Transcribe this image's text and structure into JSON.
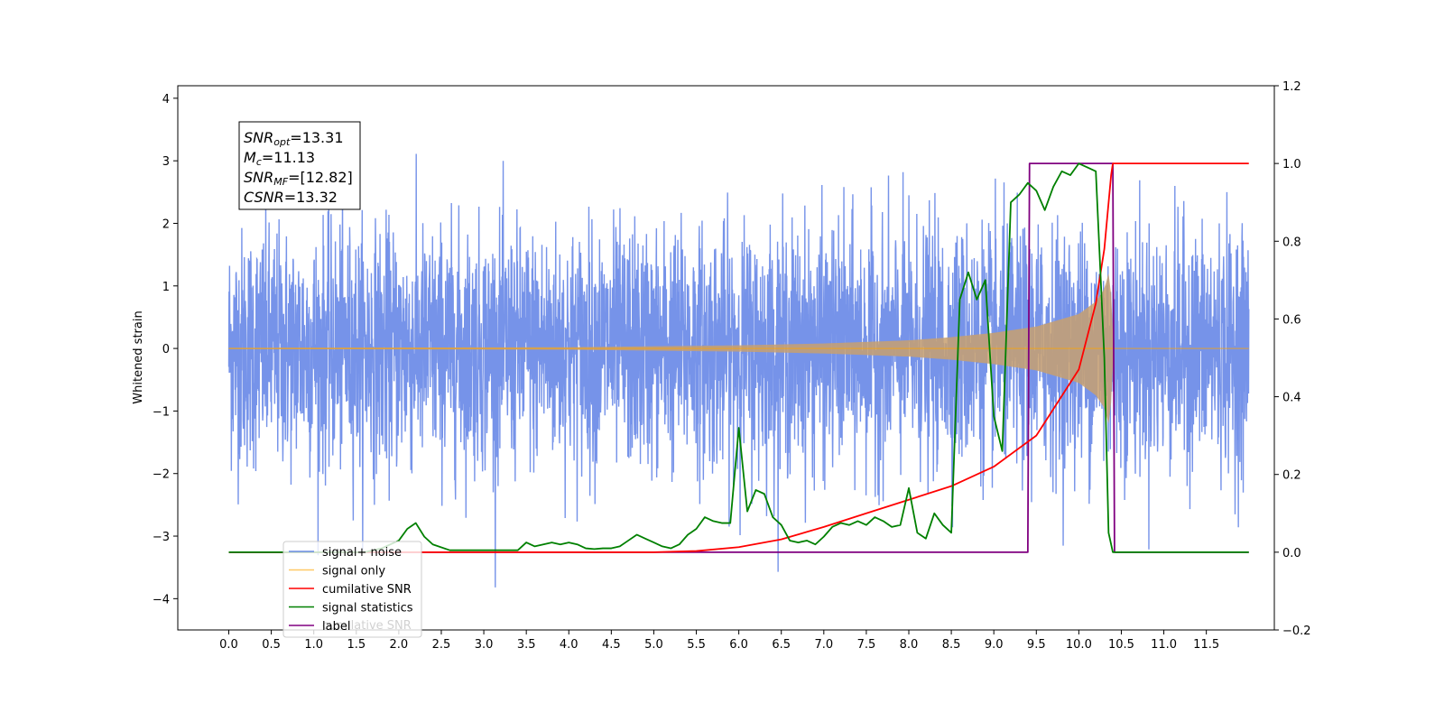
{
  "chart_data": {
    "type": "line",
    "title": "",
    "xlabel": "",
    "ylabel": "Whitened strain",
    "ylabel_right": "",
    "xlim": [
      -0.6,
      12.3
    ],
    "ylim": [
      -4.5,
      4.2
    ],
    "ylim_right": [
      -0.2,
      1.2
    ],
    "x_ticks": [
      "0.0",
      "0.5",
      "1.0",
      "1.5",
      "2.0",
      "2.5",
      "3.0",
      "3.5",
      "4.0",
      "4.5",
      "5.0",
      "5.5",
      "6.0",
      "6.5",
      "7.0",
      "7.5",
      "8.0",
      "8.5",
      "9.0",
      "9.5",
      "10.0",
      "10.5",
      "11.0",
      "11.5"
    ],
    "y_ticks_left": [
      "4",
      "3",
      "2",
      "1",
      "0",
      "−1",
      "−2",
      "−3",
      "−4"
    ],
    "y_ticks_right": [
      "1.2",
      "1.0",
      "0.8",
      "0.6",
      "0.4",
      "0.2",
      "0.0",
      "−0.2"
    ],
    "grid": false,
    "legend_placement": "lower-left",
    "annotation": {
      "lines": [
        {
          "sym": "SNR",
          "sub": "opt",
          "rest": "=13.31"
        },
        {
          "sym": "M",
          "sub": "c",
          "rest": "=11.13"
        },
        {
          "sym": "SNR",
          "sub": "MF",
          "rest": "=[12.82]"
        },
        {
          "sym": "CSNR",
          "sub": "",
          "rest": "=13.32"
        }
      ]
    },
    "series": [
      {
        "name": "signal+ noise",
        "color": "#4169e1",
        "axis": "left",
        "noise_sigma": 0.95,
        "x_range": [
          0.0,
          12.0
        ]
      },
      {
        "name": "signal only",
        "color": "#ffa500",
        "axis": "left",
        "envelope": [
          [
            0.0,
            0.01
          ],
          [
            4.0,
            0.02
          ],
          [
            6.0,
            0.05
          ],
          [
            7.0,
            0.08
          ],
          [
            8.0,
            0.13
          ],
          [
            8.5,
            0.18
          ],
          [
            9.0,
            0.25
          ],
          [
            9.5,
            0.35
          ],
          [
            10.0,
            0.55
          ],
          [
            10.2,
            0.75
          ],
          [
            10.3,
            0.95
          ],
          [
            10.37,
            1.3
          ],
          [
            10.4,
            0.0
          ],
          [
            12.0,
            0.0
          ]
        ]
      },
      {
        "name": "cumilative SNR",
        "color": "#ff0000",
        "axis": "right",
        "x": [
          0.0,
          5.0,
          5.5,
          6.0,
          6.5,
          7.0,
          7.5,
          8.0,
          8.5,
          9.0,
          9.5,
          10.0,
          10.2,
          10.3,
          10.38,
          10.4,
          12.0
        ],
        "y": [
          0.0,
          0.0,
          0.003,
          0.013,
          0.033,
          0.065,
          0.1,
          0.135,
          0.17,
          0.22,
          0.3,
          0.47,
          0.64,
          0.78,
          0.97,
          1.0,
          1.0
        ]
      },
      {
        "name": "signal statistics",
        "color": "#008000",
        "axis": "right",
        "x": [
          0.0,
          1.6,
          1.8,
          2.0,
          2.1,
          2.2,
          2.3,
          2.4,
          2.6,
          2.8,
          3.0,
          3.2,
          3.4,
          3.5,
          3.6,
          3.7,
          3.8,
          3.9,
          4.0,
          4.1,
          4.2,
          4.3,
          4.4,
          4.5,
          4.6,
          4.7,
          4.8,
          4.9,
          5.0,
          5.1,
          5.2,
          5.3,
          5.4,
          5.5,
          5.6,
          5.7,
          5.8,
          5.9,
          6.0,
          6.1,
          6.2,
          6.3,
          6.4,
          6.5,
          6.6,
          6.7,
          6.8,
          6.9,
          7.0,
          7.1,
          7.2,
          7.3,
          7.4,
          7.5,
          7.6,
          7.7,
          7.8,
          7.9,
          8.0,
          8.1,
          8.2,
          8.3,
          8.4,
          8.5,
          8.6,
          8.7,
          8.8,
          8.9,
          9.0,
          9.1,
          9.2,
          9.3,
          9.4,
          9.5,
          9.6,
          9.7,
          9.8,
          9.9,
          10.0,
          10.1,
          10.2,
          10.3,
          10.35,
          10.4,
          10.5,
          11.0,
          12.0
        ],
        "y": [
          0.0,
          0.0,
          0.01,
          0.03,
          0.06,
          0.075,
          0.04,
          0.02,
          0.005,
          0.005,
          0.005,
          0.005,
          0.005,
          0.025,
          0.015,
          0.02,
          0.025,
          0.02,
          0.025,
          0.02,
          0.01,
          0.008,
          0.01,
          0.01,
          0.015,
          0.03,
          0.045,
          0.035,
          0.025,
          0.015,
          0.01,
          0.02,
          0.045,
          0.06,
          0.09,
          0.08,
          0.075,
          0.075,
          0.32,
          0.105,
          0.16,
          0.15,
          0.09,
          0.07,
          0.03,
          0.025,
          0.03,
          0.02,
          0.04,
          0.065,
          0.075,
          0.07,
          0.08,
          0.07,
          0.09,
          0.08,
          0.065,
          0.07,
          0.165,
          0.05,
          0.035,
          0.1,
          0.07,
          0.05,
          0.65,
          0.72,
          0.65,
          0.7,
          0.35,
          0.26,
          0.9,
          0.92,
          0.95,
          0.93,
          0.88,
          0.94,
          0.98,
          0.97,
          1.0,
          0.99,
          0.98,
          0.5,
          0.05,
          0.0,
          0.0,
          0.0,
          0.0
        ]
      },
      {
        "name": "label",
        "color": "#800080",
        "axis": "right",
        "x": [
          0.0,
          9.4,
          9.42,
          10.4,
          10.42,
          12.0
        ],
        "y": [
          0.0,
          0.0,
          1.0,
          1.0,
          0.0,
          0.0
        ]
      }
    ],
    "legend_ghost_text": "cumilative SNR"
  }
}
